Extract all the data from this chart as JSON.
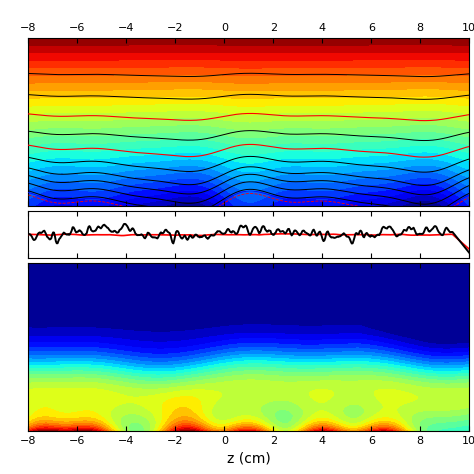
{
  "xlim": [
    -8,
    10
  ],
  "xticks": [
    -8,
    -6,
    -4,
    -2,
    0,
    2,
    4,
    6,
    8,
    10
  ],
  "xlabel": "z (cm)",
  "background_color": "#ffffff",
  "top_lines_colors": [
    "k",
    "r",
    "k",
    "r",
    "k",
    "k",
    "k",
    "k",
    "k",
    "k"
  ],
  "hot_spots_z": [
    -7.5,
    -5.5,
    -1.5,
    1.0,
    4.0,
    6.5
  ]
}
